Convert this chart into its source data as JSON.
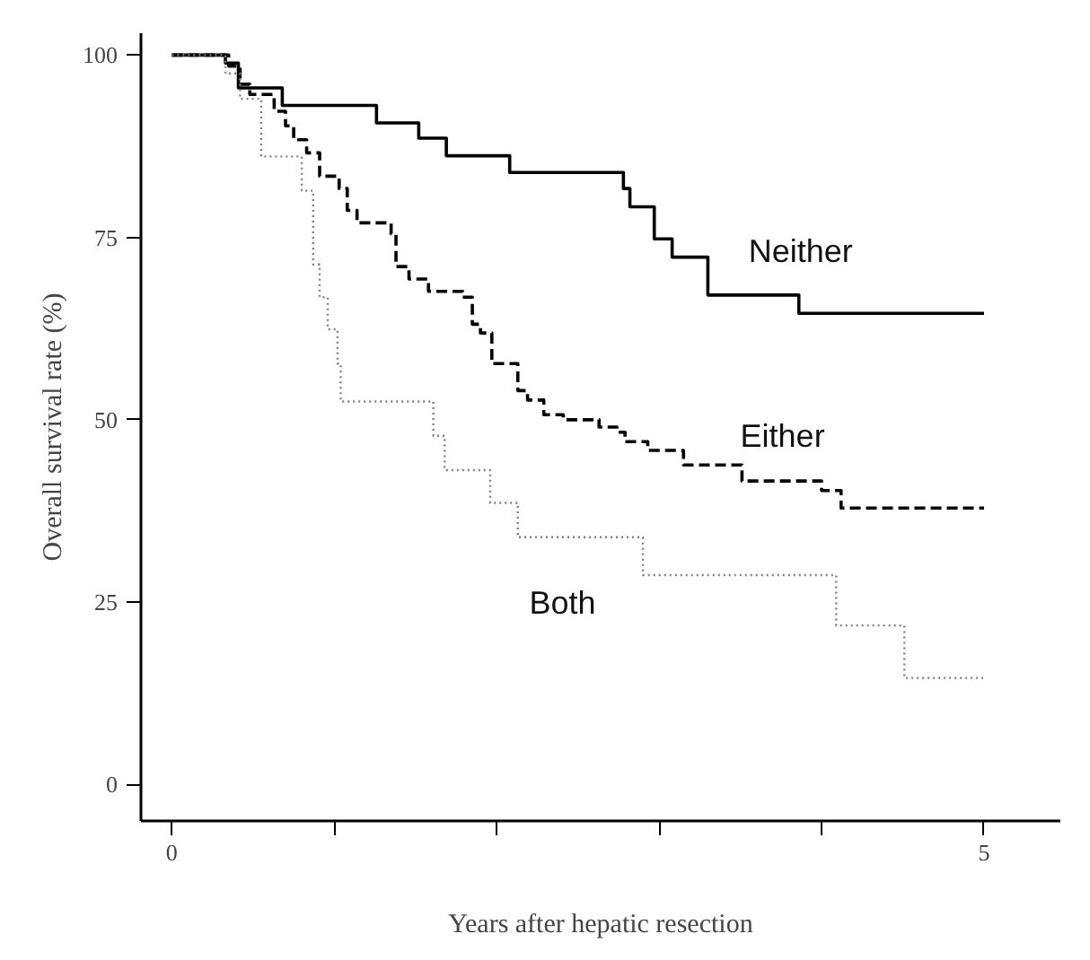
{
  "chart_data": {
    "type": "step",
    "xlabel": "Years after hepatic resection",
    "ylabel": "Overall survival rate (%)",
    "xlim": [
      -0.19,
      5.47
    ],
    "ylim": [
      -5,
      103
    ],
    "xticks": [
      0,
      {
        "value": 1,
        "label": null
      },
      {
        "value": 2,
        "label": null
      },
      {
        "value": 3,
        "label": null
      },
      {
        "value": 4,
        "label": null
      },
      5
    ],
    "yticks": [
      0,
      25,
      50,
      75,
      100
    ],
    "grid": false,
    "marker": "none",
    "series": [
      {
        "name": "Neither",
        "color": "#000000",
        "line_style": "solid",
        "x": [
          0,
          0.33,
          0.41,
          0.68,
          1.26,
          1.52,
          1.69,
          2.08,
          2.78,
          2.82,
          2.97,
          3.08,
          3.3,
          3.86,
          5
        ],
        "values": [
          100,
          98.9,
          95.5,
          93.1,
          90.7,
          88.6,
          86.2,
          83.9,
          81.7,
          79.2,
          74.8,
          72.3,
          67.1,
          64.6,
          64.6
        ]
      },
      {
        "name": "Either",
        "color": "#000000",
        "line_style": "dashed",
        "x": [
          0,
          0.35,
          0.42,
          0.48,
          0.63,
          0.7,
          0.75,
          0.83,
          0.91,
          1.03,
          1.08,
          1.14,
          1.35,
          1.38,
          1.46,
          1.58,
          1.79,
          1.85,
          1.9,
          1.97,
          2.13,
          2.19,
          2.29,
          2.41,
          2.63,
          2.74,
          2.79,
          2.93,
          3.15,
          3.51,
          4.0,
          4.12,
          5
        ],
        "values": [
          100,
          98.5,
          96,
          94.6,
          92.3,
          90.3,
          88.4,
          86.6,
          83.4,
          81.7,
          78.7,
          77.0,
          75.5,
          71.0,
          69.3,
          67.6,
          66.8,
          63.1,
          61.9,
          57.7,
          54.0,
          52.7,
          50.7,
          50.0,
          49.0,
          48.3,
          47.0,
          45.8,
          43.8,
          41.6,
          40.3,
          37.9,
          37.9
        ]
      },
      {
        "name": "Both",
        "color": "#808080",
        "line_style": "dotted",
        "x": [
          0,
          0.33,
          0.42,
          0.55,
          0.8,
          0.87,
          0.91,
          0.96,
          1.02,
          1.04,
          1.61,
          1.68,
          1.96,
          2.13,
          2.9,
          4.09,
          4.51,
          5
        ],
        "values": [
          100,
          97.5,
          94,
          86.1,
          81.4,
          71.3,
          66.8,
          62.4,
          57.7,
          52.5,
          47.8,
          43.1,
          38.6,
          33.9,
          28.7,
          21.8,
          14.6,
          14.6
        ]
      }
    ]
  }
}
